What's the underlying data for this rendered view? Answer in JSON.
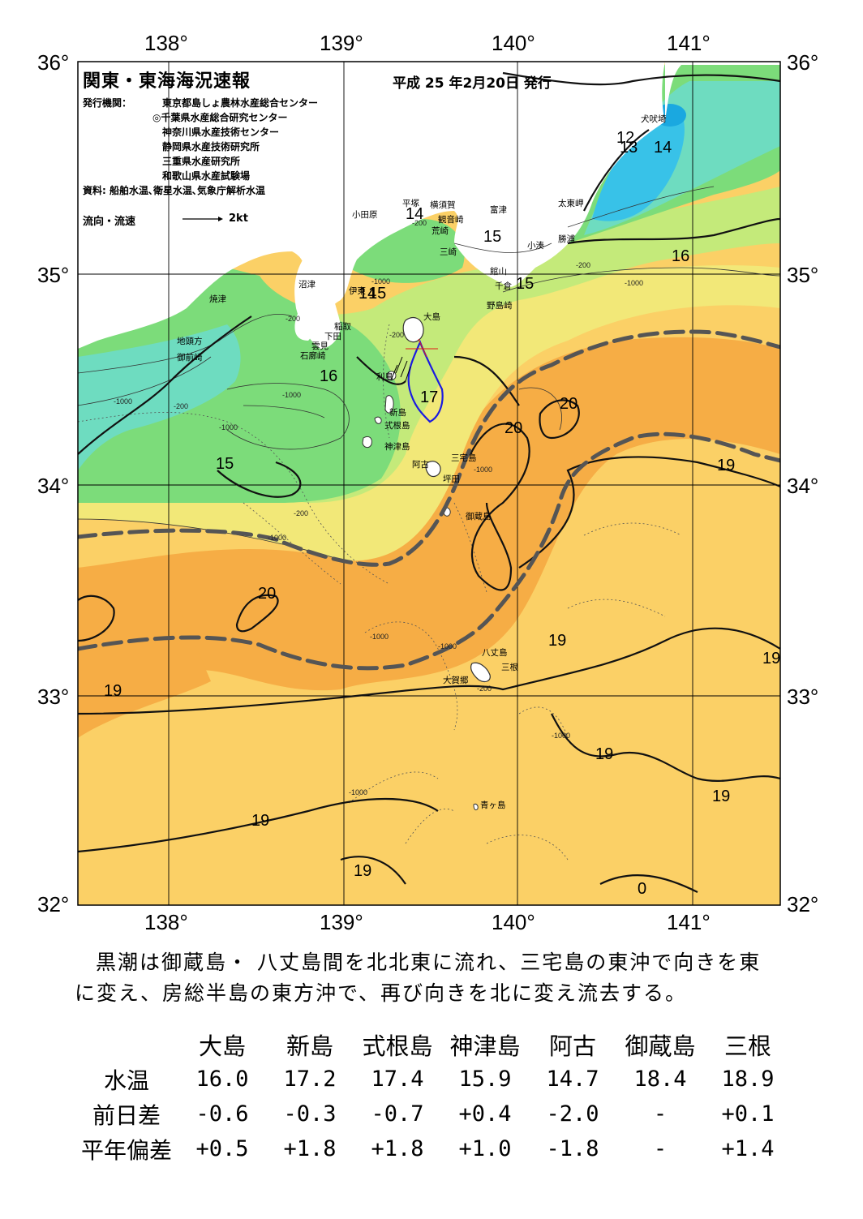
{
  "title": "関東・東海海況速報",
  "issue_date": "平成 25 年2月20日 発行",
  "issuers_label": "発行機関：",
  "issuers": [
    "東京都島しょ農林水産総合センター",
    "◎千葉県水産総合研究センター",
    "神奈川県水産技術センター",
    "静岡県水産技術研究所",
    "三重県水産研究所",
    "和歌山県水産試験場"
  ],
  "source": "資料: 船舶水温､衛星水温､気象庁解析水温",
  "flow_legend": {
    "label": "流向・流速",
    "value": "2kt"
  },
  "axes": {
    "lon_labels": [
      "138°",
      "139°",
      "140°",
      "141°"
    ],
    "lat_labels": [
      "36°",
      "35°",
      "34°",
      "33°",
      "32°"
    ]
  },
  "isotherm_labels": [
    "12",
    "13",
    "14",
    "14",
    "15",
    "15",
    "14",
    "15",
    "16",
    "16",
    "17",
    "15",
    "20",
    "20",
    "20",
    "19",
    "19",
    "19",
    "19",
    "19",
    "19",
    "19",
    "19",
    "0"
  ],
  "depth_labels": [
    "-200",
    "-1000",
    "-200",
    "-1000",
    "-200",
    "-1000",
    "-200",
    "-1000",
    "-1000",
    "-200",
    "-1000",
    "-1000",
    "-200",
    "-1000",
    "-1000",
    "-1000",
    "-200",
    "-1000"
  ],
  "place_names": [
    "犬吠埼",
    "太東岬",
    "勝浦",
    "小湊",
    "富津",
    "横須賀",
    "観音崎",
    "荒崎",
    "三崎",
    "館山",
    "千倉",
    "野島崎",
    "小田原",
    "平塚",
    "伊東",
    "沼津",
    "焼津",
    "稲取",
    "下田",
    "雲見",
    "石廊崎",
    "地頭方",
    "御前崎",
    "大島",
    "利島",
    "新島",
    "式根島",
    "神津島",
    "三宅島",
    "阿古",
    "坪田",
    "御蔵島",
    "八丈島",
    "三根",
    "大賀郷",
    "青ヶ島"
  ],
  "colors": {
    "cold": "#36c4e8",
    "cool": "#6ee0c8",
    "green": "#7ee07a",
    "yellow_green": "#c6ec7a",
    "yellow": "#f2ea7a",
    "warm": "#fcd468",
    "orange": "#f7b24a",
    "orange_dark": "#f2a13a",
    "kuroshio_axis": "#555555",
    "land": "#ffffff"
  },
  "description": [
    "黒潮は御蔵島・ 八丈島間を北北東に流れ、三宅島の東沖で向きを東",
    "に変え、房総半島の東方沖で、再び向きを北に変え流去する。"
  ],
  "table": {
    "columns": [
      "大島",
      "新島",
      "式根島",
      "神津島",
      "阿古",
      "御蔵島",
      "三根"
    ],
    "rows": [
      {
        "label": "水温",
        "values": [
          "16.0",
          "17.2",
          "17.4",
          "15.9",
          "14.7",
          "18.4",
          "18.9"
        ]
      },
      {
        "label": "前日差",
        "values": [
          "-0.6",
          "-0.3",
          "-0.7",
          "+0.4",
          "-2.0",
          "-",
          "+0.1"
        ]
      },
      {
        "label": "平年偏差",
        "values": [
          "+0.5",
          "+1.8",
          "+1.8",
          "+1.0",
          "-1.8",
          "-",
          "+1.4"
        ]
      }
    ]
  }
}
